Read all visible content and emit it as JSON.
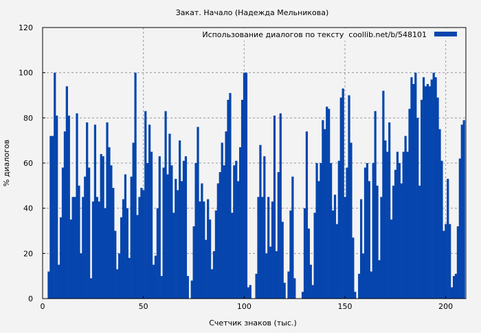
{
  "chart_data": {
    "type": "bar",
    "title": "Закат. Начало (Надежда Мельникова)",
    "xlabel": "Счетчик знаков (тыс.)",
    "ylabel": "% диалогов",
    "xlim": [
      0,
      210
    ],
    "ylim": [
      0,
      120
    ],
    "xticks": [
      0,
      50,
      100,
      150,
      200
    ],
    "yticks": [
      0,
      20,
      40,
      60,
      80,
      100,
      120
    ],
    "grid": true,
    "legend_position": "top-right",
    "series": [
      {
        "name": "Использование диалогов по тексту  coollib.net/b/548101",
        "color": "#0645ad",
        "x": [
          3,
          4,
          5,
          6,
          7,
          8,
          9,
          10,
          11,
          12,
          13,
          14,
          15,
          16,
          17,
          18,
          19,
          20,
          21,
          22,
          23,
          24,
          25,
          26,
          27,
          28,
          29,
          30,
          31,
          32,
          33,
          34,
          35,
          36,
          37,
          38,
          39,
          40,
          41,
          42,
          43,
          44,
          45,
          46,
          47,
          48,
          49,
          50,
          51,
          52,
          53,
          54,
          55,
          56,
          57,
          58,
          59,
          60,
          61,
          62,
          63,
          64,
          65,
          66,
          67,
          68,
          69,
          70,
          71,
          72,
          73,
          74,
          75,
          76,
          77,
          78,
          79,
          80,
          81,
          82,
          83,
          84,
          85,
          86,
          87,
          88,
          89,
          90,
          91,
          92,
          93,
          94,
          95,
          96,
          97,
          98,
          99,
          100,
          101,
          102,
          103,
          104,
          105,
          106,
          107,
          108,
          109,
          110,
          111,
          112,
          113,
          114,
          115,
          116,
          117,
          118,
          119,
          120,
          121,
          122,
          123,
          124,
          125,
          126,
          127,
          128,
          129,
          130,
          131,
          132,
          133,
          134,
          135,
          136,
          137,
          138,
          139,
          140,
          141,
          142,
          143,
          144,
          145,
          146,
          147,
          148,
          149,
          150,
          151,
          152,
          153,
          154,
          155,
          156,
          157,
          158,
          159,
          160,
          161,
          162,
          163,
          164,
          165,
          166,
          167,
          168,
          169,
          170,
          171,
          172,
          173,
          174,
          175,
          176,
          177,
          178,
          179,
          180,
          181,
          182,
          183,
          184,
          185,
          186,
          187,
          188,
          189,
          190,
          191,
          192,
          193,
          194,
          195,
          196,
          197,
          198,
          199,
          200,
          201,
          202,
          203,
          204,
          205,
          206,
          207,
          208,
          209
        ],
        "values": [
          12,
          72,
          72,
          100,
          81,
          15,
          36,
          58,
          74,
          94,
          81,
          35,
          45,
          45,
          82,
          50,
          20,
          45,
          54,
          78,
          58,
          9,
          43,
          77,
          45,
          43,
          64,
          63,
          40,
          78,
          67,
          59,
          49,
          30,
          13,
          20,
          36,
          44,
          55,
          40,
          18,
          54,
          69,
          100,
          37,
          45,
          49,
          48,
          83,
          60,
          77,
          65,
          15,
          19,
          40,
          63,
          10,
          58,
          83,
          55,
          73,
          59,
          38,
          53,
          48,
          70,
          52,
          61,
          63,
          10,
          0,
          8,
          32,
          60,
          76,
          43,
          51,
          43,
          26,
          44,
          35,
          13,
          21,
          39,
          51,
          56,
          69,
          59,
          74,
          88,
          91,
          38,
          59,
          61,
          52,
          67,
          88,
          100,
          100,
          5,
          6,
          0,
          0,
          11,
          45,
          68,
          45,
          63,
          20,
          45,
          23,
          43,
          81,
          21,
          56,
          82,
          34,
          7,
          0,
          12,
          39,
          54,
          9,
          0,
          0,
          0,
          3,
          40,
          74,
          31,
          15,
          6,
          38,
          60,
          52,
          60,
          79,
          75,
          85,
          84,
          60,
          39,
          46,
          33,
          61,
          89,
          93,
          45,
          58,
          90,
          69,
          27,
          3,
          0,
          11,
          44,
          20,
          58,
          60,
          52,
          12,
          60,
          83,
          50,
          17,
          45,
          92,
          70,
          65,
          78,
          35,
          50,
          57,
          65,
          60,
          51,
          65,
          72,
          65,
          84,
          98,
          95,
          100,
          80,
          50,
          88,
          98,
          94,
          95,
          94,
          97,
          100,
          98,
          89,
          75,
          61,
          30,
          33,
          53,
          33,
          5,
          10,
          11,
          32,
          62,
          77,
          79
        ]
      }
    ]
  }
}
